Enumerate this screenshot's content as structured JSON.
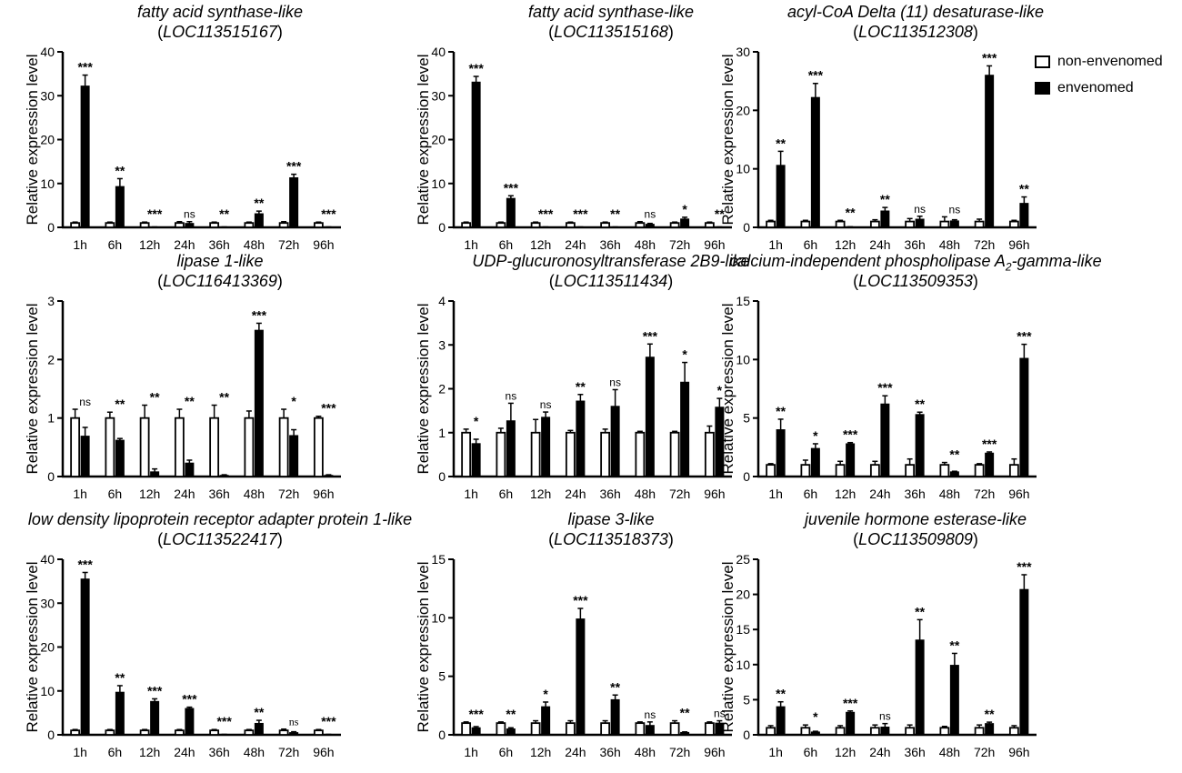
{
  "legend": {
    "non_label": "non-envenomed",
    "env_label": "envenomed",
    "non_color": "#ffffff",
    "env_color": "#000000"
  },
  "chart_data": [
    {
      "type": "bar",
      "title": "fatty acid synthase-like",
      "locus": "LOC113515167",
      "ylabel": "Relative expression level",
      "categories": [
        "1h",
        "6h",
        "12h",
        "24h",
        "36h",
        "48h",
        "72h",
        "96h"
      ],
      "ylim": [
        0,
        40
      ],
      "yticks": [
        0,
        10,
        20,
        30,
        40
      ],
      "series": [
        {
          "name": "non-envenomed",
          "values": [
            1,
            1,
            1,
            1,
            1,
            1,
            1,
            1
          ],
          "errors": [
            0.2,
            0.2,
            0.2,
            0.3,
            0.2,
            0.2,
            0.3,
            0.2
          ]
        },
        {
          "name": "envenomed",
          "values": [
            32.2,
            9.3,
            0.05,
            0.9,
            0.05,
            3.1,
            11.3,
            0.05
          ],
          "errors": [
            2.5,
            1.8,
            0.05,
            0.4,
            0.05,
            0.6,
            0.8,
            0.05
          ]
        }
      ],
      "significance": [
        "***",
        "**",
        "***",
        "ns",
        "**",
        "**",
        "***",
        "***"
      ]
    },
    {
      "type": "bar",
      "title": "fatty acid synthase-like",
      "locus": "LOC113515168",
      "ylabel": "Relative expression level",
      "categories": [
        "1h",
        "6h",
        "12h",
        "24h",
        "36h",
        "48h",
        "72h",
        "96h"
      ],
      "ylim": [
        0,
        40
      ],
      "yticks": [
        0,
        10,
        20,
        30,
        40
      ],
      "series": [
        {
          "name": "non-envenomed",
          "values": [
            1,
            1,
            1,
            1,
            1,
            1,
            1,
            1
          ],
          "errors": [
            0.2,
            0.2,
            0.2,
            0.2,
            0.2,
            0.3,
            0.2,
            0.2
          ]
        },
        {
          "name": "envenomed",
          "values": [
            33.1,
            6.6,
            0.05,
            0.05,
            0.05,
            0.7,
            1.9,
            0.05
          ],
          "errors": [
            1.3,
            0.6,
            0.05,
            0.05,
            0.05,
            0.2,
            0.4,
            0.05
          ]
        }
      ],
      "significance": [
        "***",
        "***",
        "***",
        "***",
        "**",
        "ns",
        "*",
        "**"
      ]
    },
    {
      "type": "bar",
      "title": "acyl-CoA Delta (11) desaturase-like",
      "locus": "LOC113512308",
      "ylabel": "Relative expression level",
      "categories": [
        "1h",
        "6h",
        "12h",
        "24h",
        "36h",
        "48h",
        "72h",
        "96h"
      ],
      "ylim": [
        0,
        30
      ],
      "yticks": [
        0,
        10,
        20,
        30
      ],
      "series": [
        {
          "name": "non-envenomed",
          "values": [
            1,
            1,
            1,
            1,
            1,
            1,
            1,
            1
          ],
          "errors": [
            0.2,
            0.2,
            0.2,
            0.3,
            0.5,
            0.8,
            0.4,
            0.2
          ]
        },
        {
          "name": "envenomed",
          "values": [
            10.6,
            22.2,
            0.05,
            2.8,
            1.4,
            1.1,
            26.0,
            4.1
          ],
          "errors": [
            2.4,
            2.4,
            0.05,
            0.6,
            0.5,
            0.2,
            1.6,
            1.1
          ]
        }
      ],
      "significance": [
        "**",
        "***",
        "**",
        "**",
        "ns",
        "ns",
        "***",
        "**"
      ]
    },
    {
      "type": "bar",
      "title": "lipase 1-like",
      "locus": "LOC116413369",
      "ylabel": "Relative expression level",
      "categories": [
        "1h",
        "6h",
        "12h",
        "24h",
        "36h",
        "48h",
        "72h",
        "96h"
      ],
      "ylim": [
        0,
        3
      ],
      "yticks": [
        0,
        1,
        2,
        3
      ],
      "series": [
        {
          "name": "non-envenomed",
          "values": [
            1,
            1,
            1,
            1,
            1,
            1,
            1,
            1
          ],
          "errors": [
            0.15,
            0.1,
            0.22,
            0.15,
            0.22,
            0.12,
            0.15,
            0.03
          ]
        },
        {
          "name": "envenomed",
          "values": [
            0.69,
            0.62,
            0.08,
            0.23,
            0.02,
            2.5,
            0.7,
            0.02
          ],
          "errors": [
            0.15,
            0.03,
            0.05,
            0.05,
            0.01,
            0.12,
            0.1,
            0.01
          ]
        }
      ],
      "significance": [
        "ns",
        "**",
        "**",
        "**",
        "**",
        "***",
        "*",
        "***"
      ]
    },
    {
      "type": "bar",
      "title": "UDP-glucuronosyltransferase 2B9-like",
      "locus": "LOC113511434",
      "ylabel": "Relative expression level",
      "categories": [
        "1h",
        "6h",
        "12h",
        "24h",
        "36h",
        "48h",
        "72h",
        "96h"
      ],
      "ylim": [
        0,
        4
      ],
      "yticks": [
        0,
        1,
        2,
        3,
        4
      ],
      "series": [
        {
          "name": "non-envenomed",
          "values": [
            1,
            1,
            1,
            1,
            1,
            1,
            1,
            1
          ],
          "errors": [
            0.08,
            0.1,
            0.3,
            0.05,
            0.08,
            0.03,
            0.03,
            0.15
          ]
        },
        {
          "name": "envenomed",
          "values": [
            0.75,
            1.27,
            1.35,
            1.72,
            1.6,
            2.72,
            2.15,
            1.58
          ],
          "errors": [
            0.1,
            0.4,
            0.12,
            0.15,
            0.38,
            0.3,
            0.45,
            0.2
          ]
        }
      ],
      "significance": [
        "*",
        "ns",
        "ns",
        "**",
        "ns",
        "***",
        "*",
        "*"
      ]
    },
    {
      "type": "bar",
      "title": "calcium-independent phospholipase A",
      "title_sub": "2",
      "title_end": "-gamma-like",
      "locus": "LOC113509353",
      "ylabel": "Relative expression level",
      "categories": [
        "1h",
        "6h",
        "12h",
        "24h",
        "36h",
        "48h",
        "72h",
        "96h"
      ],
      "ylim": [
        0,
        15
      ],
      "yticks": [
        0,
        5,
        10,
        15
      ],
      "series": [
        {
          "name": "non-envenomed",
          "values": [
            1,
            1,
            1,
            1,
            1,
            1,
            1,
            1
          ],
          "errors": [
            0.1,
            0.4,
            0.3,
            0.3,
            0.5,
            0.2,
            0.1,
            0.5
          ]
        },
        {
          "name": "envenomed",
          "values": [
            4.0,
            2.4,
            2.8,
            6.2,
            5.3,
            0.4,
            2.0,
            10.1
          ],
          "errors": [
            0.9,
            0.4,
            0.1,
            0.7,
            0.2,
            0.05,
            0.1,
            1.2
          ]
        }
      ],
      "significance": [
        "**",
        "*",
        "***",
        "***",
        "**",
        "**",
        "***",
        "***"
      ]
    },
    {
      "type": "bar",
      "title": "low density lipoprotein receptor adapter protein 1-like",
      "locus": "LOC113522417",
      "ylabel": "Relative expression level",
      "categories": [
        "1h",
        "6h",
        "12h",
        "24h",
        "36h",
        "48h",
        "72h",
        "96h"
      ],
      "ylim": [
        0,
        40
      ],
      "yticks": [
        0,
        10,
        20,
        30,
        40
      ],
      "series": [
        {
          "name": "non-envenomed",
          "values": [
            1,
            1,
            1,
            1,
            1,
            1,
            1,
            1
          ],
          "errors": [
            0.2,
            0.2,
            0.2,
            0.2,
            0.2,
            0.2,
            0.3,
            0.2
          ]
        },
        {
          "name": "envenomed",
          "values": [
            35.5,
            9.7,
            7.6,
            6.0,
            0.05,
            2.6,
            0.5,
            0.05
          ],
          "errors": [
            1.5,
            1.5,
            0.6,
            0.3,
            0.05,
            0.7,
            0.2,
            0.05
          ]
        }
      ],
      "significance": [
        "***",
        "**",
        "***",
        "***",
        "***",
        "**",
        "ns",
        "***"
      ]
    },
    {
      "type": "bar",
      "title": "lipase 3-like",
      "locus": "LOC113518373",
      "ylabel": "Relative expression level",
      "categories": [
        "1h",
        "6h",
        "12h",
        "24h",
        "36h",
        "48h",
        "72h",
        "96h"
      ],
      "ylim": [
        0,
        15
      ],
      "yticks": [
        0,
        5,
        10,
        15
      ],
      "series": [
        {
          "name": "non-envenomed",
          "values": [
            1,
            1,
            1,
            1,
            1,
            1,
            1,
            1
          ],
          "errors": [
            0.1,
            0.1,
            0.2,
            0.2,
            0.2,
            0.1,
            0.2,
            0.1
          ]
        },
        {
          "name": "envenomed",
          "values": [
            0.6,
            0.5,
            2.4,
            9.9,
            3.0,
            0.8,
            0.2,
            1.0
          ],
          "errors": [
            0.1,
            0.1,
            0.4,
            0.9,
            0.4,
            0.3,
            0.05,
            0.2
          ]
        }
      ],
      "significance": [
        "***",
        "**",
        "*",
        "***",
        "**",
        "ns",
        "**",
        "ns"
      ]
    },
    {
      "type": "bar",
      "title": "juvenile hormone esterase-like",
      "locus": "LOC113509809",
      "ylabel": "Relative expression level",
      "categories": [
        "1h",
        "6h",
        "12h",
        "24h",
        "36h",
        "48h",
        "72h",
        "96h"
      ],
      "ylim": [
        0,
        25
      ],
      "yticks": [
        0,
        5,
        10,
        15,
        20,
        25
      ],
      "series": [
        {
          "name": "non-envenomed",
          "values": [
            1,
            1,
            1,
            1,
            1,
            1,
            1,
            1
          ],
          "errors": [
            0.3,
            0.4,
            0.3,
            0.4,
            0.4,
            0.2,
            0.4,
            0.3
          ]
        },
        {
          "name": "envenomed",
          "values": [
            4.0,
            0.4,
            3.2,
            1.1,
            13.5,
            9.9,
            1.6,
            20.7
          ],
          "errors": [
            0.7,
            0.1,
            0.2,
            0.5,
            2.9,
            1.7,
            0.2,
            2.1
          ]
        }
      ],
      "significance": [
        "**",
        "*",
        "***",
        "ns",
        "**",
        "**",
        "**",
        "***"
      ]
    }
  ]
}
